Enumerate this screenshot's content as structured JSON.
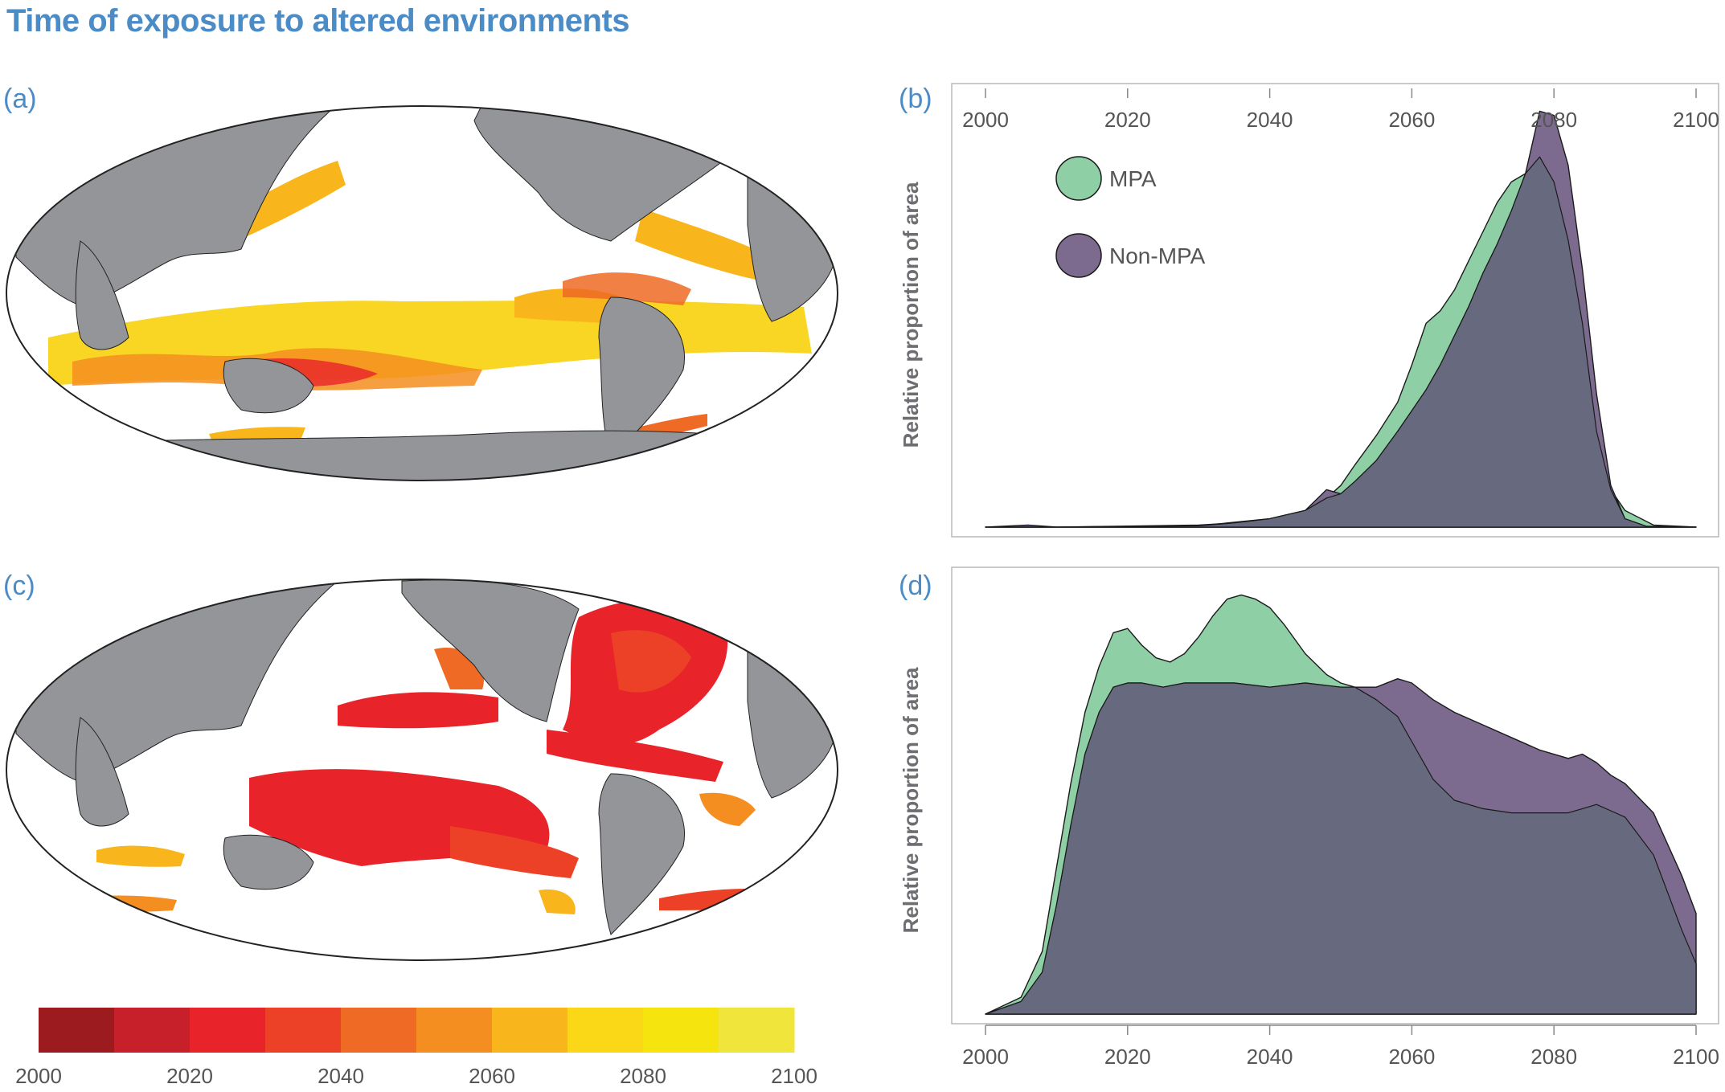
{
  "title": "Time of exposure to altered environments",
  "panels": {
    "a": "(a)",
    "b": "(b)",
    "c": "(c)",
    "d": "(d)"
  },
  "colors": {
    "title": "#4b8bc6",
    "land": "#939598",
    "ocean": "#ffffff",
    "mpa": "#8fcfa6",
    "non_mpa": "#7d6a8f",
    "overlap": "#676a7e"
  },
  "colorbar": {
    "colors": [
      "#9b1b1e",
      "#c8202a",
      "#e8232a",
      "#ec4127",
      "#ef6a24",
      "#f48e20",
      "#f8b51c",
      "#fbd817",
      "#f6e40f",
      "#f0e53a"
    ],
    "tick_labels": [
      "2000",
      "2020",
      "2040",
      "2060",
      "2080",
      "2100"
    ]
  },
  "chart_data": [
    {
      "type": "area",
      "panel": "(b)",
      "ylabel": "Relative proportion of area",
      "xlabel": "",
      "xlim": [
        2000,
        2100
      ],
      "x_ticks": [
        "2000",
        "2020",
        "2040",
        "2060",
        "2080",
        "2100"
      ],
      "legend": {
        "placement": "top-left",
        "entries": [
          "MPA",
          "Non-MPA"
        ]
      },
      "series": [
        {
          "name": "MPA",
          "x": [
            2000,
            2010,
            2030,
            2040,
            2045,
            2048,
            2050,
            2052,
            2055,
            2058,
            2060,
            2062,
            2064,
            2066,
            2068,
            2070,
            2072,
            2074,
            2076,
            2078,
            2080,
            2082,
            2084,
            2086,
            2088,
            2090,
            2094,
            2100
          ],
          "values": [
            0.0,
            0.0,
            0.003,
            0.02,
            0.04,
            0.07,
            0.1,
            0.15,
            0.22,
            0.3,
            0.39,
            0.49,
            0.52,
            0.57,
            0.64,
            0.71,
            0.78,
            0.83,
            0.85,
            0.89,
            0.83,
            0.69,
            0.49,
            0.23,
            0.09,
            0.04,
            0.005,
            0.0
          ]
        },
        {
          "name": "Non-MPA",
          "x": [
            2000,
            2006,
            2010,
            2030,
            2035,
            2040,
            2045,
            2048,
            2050,
            2052,
            2055,
            2058,
            2060,
            2062,
            2064,
            2066,
            2068,
            2070,
            2072,
            2074,
            2076,
            2078,
            2080,
            2082,
            2084,
            2086,
            2088,
            2090,
            2093,
            2100
          ],
          "values": [
            0.0,
            0.005,
            0.0,
            0.005,
            0.01,
            0.02,
            0.04,
            0.09,
            0.08,
            0.11,
            0.16,
            0.23,
            0.28,
            0.33,
            0.39,
            0.46,
            0.53,
            0.61,
            0.68,
            0.76,
            0.85,
            1.0,
            0.99,
            0.87,
            0.62,
            0.32,
            0.1,
            0.02,
            0.002,
            0.0
          ]
        }
      ]
    },
    {
      "type": "area",
      "panel": "(d)",
      "ylabel": "Relative proportion of area",
      "xlabel": "",
      "xlim": [
        2000,
        2100
      ],
      "x_ticks": [
        "2000",
        "2020",
        "2040",
        "2060",
        "2080",
        "2100"
      ],
      "series": [
        {
          "name": "MPA",
          "x": [
            2000,
            2005,
            2008,
            2010,
            2012,
            2014,
            2016,
            2018,
            2020,
            2022,
            2024,
            2026,
            2028,
            2030,
            2032,
            2034,
            2036,
            2038,
            2040,
            2042,
            2045,
            2048,
            2050,
            2052,
            2055,
            2058,
            2060,
            2063,
            2066,
            2070,
            2074,
            2078,
            2082,
            2086,
            2090,
            2094,
            2098,
            2100
          ],
          "values": [
            0.0,
            0.04,
            0.15,
            0.35,
            0.55,
            0.72,
            0.83,
            0.91,
            0.92,
            0.88,
            0.85,
            0.84,
            0.86,
            0.9,
            0.95,
            0.99,
            1.0,
            0.99,
            0.97,
            0.93,
            0.86,
            0.81,
            0.79,
            0.78,
            0.75,
            0.71,
            0.65,
            0.56,
            0.51,
            0.49,
            0.48,
            0.48,
            0.48,
            0.5,
            0.47,
            0.38,
            0.2,
            0.12
          ]
        },
        {
          "name": "Non-MPA",
          "x": [
            2000,
            2005,
            2008,
            2010,
            2012,
            2014,
            2016,
            2018,
            2020,
            2022,
            2025,
            2028,
            2030,
            2035,
            2040,
            2045,
            2050,
            2055,
            2058,
            2060,
            2063,
            2066,
            2070,
            2074,
            2078,
            2082,
            2084,
            2086,
            2088,
            2090,
            2094,
            2098,
            2100
          ],
          "values": [
            0.0,
            0.03,
            0.1,
            0.26,
            0.45,
            0.62,
            0.72,
            0.78,
            0.79,
            0.79,
            0.78,
            0.79,
            0.79,
            0.79,
            0.78,
            0.79,
            0.78,
            0.78,
            0.8,
            0.79,
            0.75,
            0.72,
            0.69,
            0.66,
            0.63,
            0.61,
            0.62,
            0.6,
            0.57,
            0.55,
            0.48,
            0.33,
            0.24
          ]
        }
      ]
    }
  ]
}
